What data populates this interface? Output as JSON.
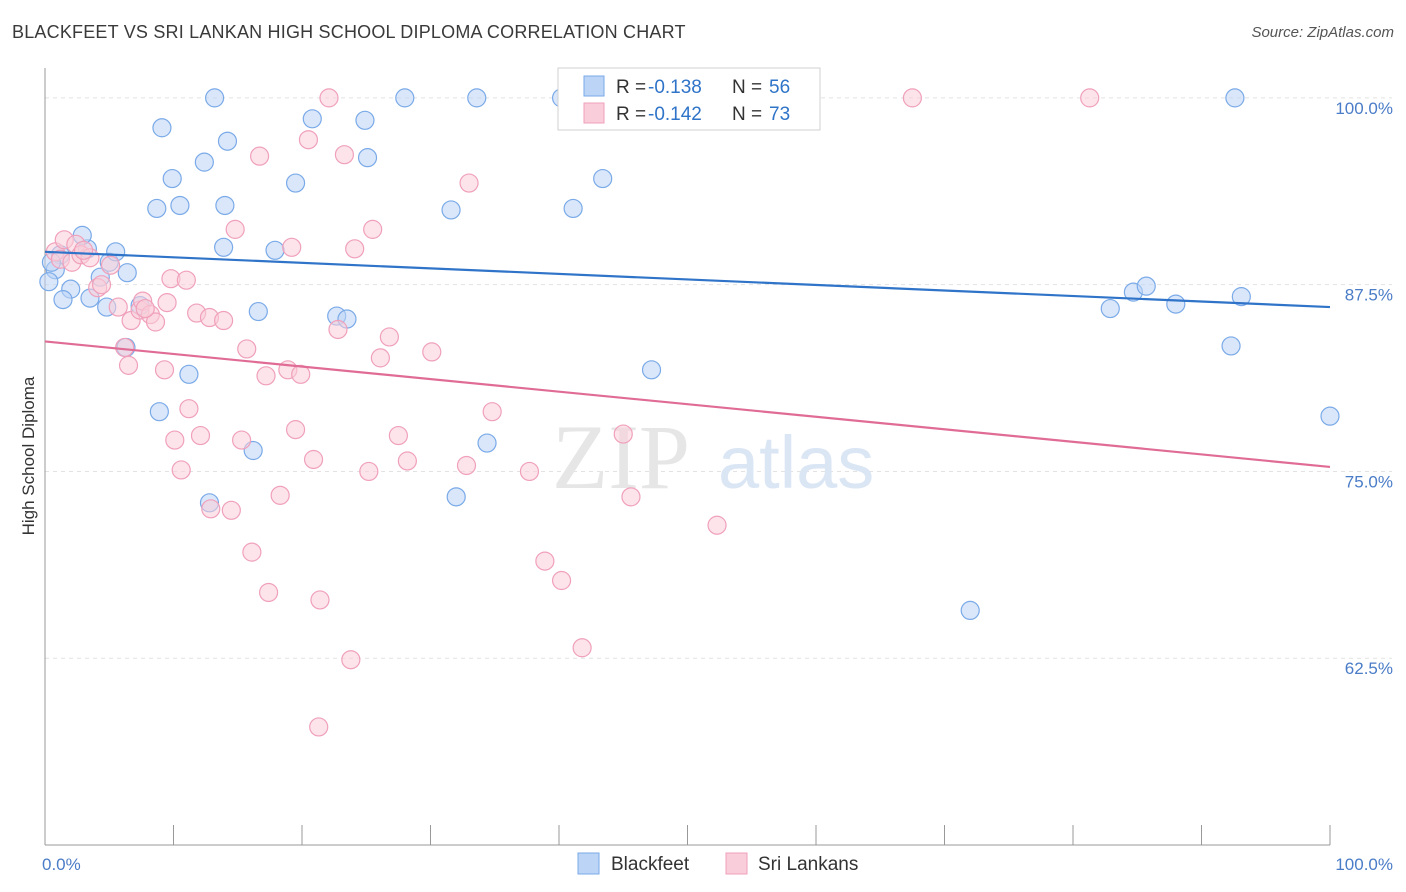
{
  "title": "BLACKFEET VS SRI LANKAN HIGH SCHOOL DIPLOMA CORRELATION CHART",
  "source": "Source: ZipAtlas.com",
  "watermark": {
    "part1": "ZIP",
    "part2": "atlas"
  },
  "chart_data": {
    "type": "scatter",
    "ylabel": "High School Diploma",
    "xlim": [
      0,
      100
    ],
    "ylim": [
      50,
      102
    ],
    "x_tick_labels": [
      "0.0%",
      "100.0%"
    ],
    "y_ticks": [
      {
        "value": 100,
        "label": "100.0%"
      },
      {
        "value": 87.5,
        "label": "87.5%"
      },
      {
        "value": 75,
        "label": "75.0%"
      },
      {
        "value": 62.5,
        "label": "62.5%"
      }
    ],
    "grid": true,
    "legend_position": "top-center",
    "series": [
      {
        "name": "Blackfeet",
        "color": "#7aaae8",
        "fill": "#bcd4f5",
        "line_color": "#2f74c8",
        "r_label": "R = ",
        "r": "-0.138",
        "n_label": "N = ",
        "n": "56",
        "trend": {
          "x0": 0,
          "y0": 89.7,
          "x1": 100,
          "y1": 86.0
        },
        "points": [
          [
            1.2,
            89.5
          ],
          [
            0.8,
            88.5
          ],
          [
            0.5,
            89.0
          ],
          [
            2.0,
            87.2
          ],
          [
            1.4,
            86.5
          ],
          [
            3.3,
            89.9
          ],
          [
            2.9,
            90.8
          ],
          [
            3.5,
            86.6
          ],
          [
            4.3,
            88.0
          ],
          [
            5.0,
            89.0
          ],
          [
            5.5,
            89.7
          ],
          [
            4.8,
            86.0
          ],
          [
            6.4,
            88.3
          ],
          [
            7.4,
            86.1
          ],
          [
            6.3,
            83.3
          ],
          [
            9.1,
            98.0
          ],
          [
            9.9,
            94.6
          ],
          [
            8.7,
            92.6
          ],
          [
            10.5,
            92.8
          ],
          [
            12.4,
            95.7
          ],
          [
            13.2,
            100.0
          ],
          [
            14.2,
            97.1
          ],
          [
            14.0,
            92.8
          ],
          [
            13.9,
            90.0
          ],
          [
            16.6,
            85.7
          ],
          [
            17.9,
            89.8
          ],
          [
            19.5,
            94.3
          ],
          [
            20.8,
            98.6
          ],
          [
            22.7,
            85.4
          ],
          [
            23.5,
            85.2
          ],
          [
            24.9,
            98.5
          ],
          [
            25.1,
            96.0
          ],
          [
            28.0,
            100.0
          ],
          [
            31.6,
            92.5
          ],
          [
            33.6,
            100.0
          ],
          [
            34.4,
            76.9
          ],
          [
            32.0,
            73.3
          ],
          [
            40.2,
            100.0
          ],
          [
            41.1,
            92.6
          ],
          [
            43.4,
            94.6
          ],
          [
            46.9,
            100.0
          ],
          [
            47.2,
            81.8
          ],
          [
            11.2,
            81.5
          ],
          [
            8.9,
            79.0
          ],
          [
            16.2,
            76.4
          ],
          [
            12.8,
            72.9
          ],
          [
            92.6,
            100.0
          ],
          [
            84.7,
            87.0
          ],
          [
            85.7,
            87.4
          ],
          [
            82.9,
            85.9
          ],
          [
            88.0,
            86.2
          ],
          [
            92.3,
            83.4
          ],
          [
            93.1,
            86.7
          ],
          [
            100.0,
            78.7
          ],
          [
            72.0,
            65.7
          ],
          [
            0.3,
            87.7
          ]
        ]
      },
      {
        "name": "Sri Lankans",
        "color": "#f0a0bb",
        "fill": "#f9cdd9",
        "line_color": "#e06c96",
        "r_label": "R = ",
        "r": "-0.142",
        "n_label": "N = ",
        "n": "73",
        "trend": {
          "x0": 0,
          "y0": 83.7,
          "x1": 100,
          "y1": 75.3
        },
        "points": [
          [
            0.8,
            89.7
          ],
          [
            1.2,
            89.2
          ],
          [
            1.5,
            90.5
          ],
          [
            2.1,
            89.0
          ],
          [
            2.4,
            90.2
          ],
          [
            2.8,
            89.5
          ],
          [
            3.5,
            89.3
          ],
          [
            4.1,
            87.3
          ],
          [
            4.4,
            87.5
          ],
          [
            5.1,
            88.8
          ],
          [
            5.7,
            86.0
          ],
          [
            6.2,
            83.3
          ],
          [
            6.5,
            82.1
          ],
          [
            6.7,
            85.1
          ],
          [
            7.4,
            85.8
          ],
          [
            7.6,
            86.4
          ],
          [
            8.2,
            85.5
          ],
          [
            8.6,
            85.0
          ],
          [
            9.3,
            81.8
          ],
          [
            9.8,
            87.9
          ],
          [
            10.1,
            77.1
          ],
          [
            10.6,
            75.1
          ],
          [
            11.0,
            87.8
          ],
          [
            11.2,
            79.2
          ],
          [
            11.8,
            85.6
          ],
          [
            12.1,
            77.4
          ],
          [
            12.8,
            85.3
          ],
          [
            12.9,
            72.5
          ],
          [
            13.9,
            85.1
          ],
          [
            14.5,
            72.4
          ],
          [
            14.8,
            91.2
          ],
          [
            15.3,
            77.1
          ],
          [
            15.7,
            83.2
          ],
          [
            16.1,
            69.6
          ],
          [
            16.7,
            96.1
          ],
          [
            17.2,
            81.4
          ],
          [
            17.4,
            66.9
          ],
          [
            18.3,
            73.4
          ],
          [
            18.9,
            81.8
          ],
          [
            19.2,
            90.0
          ],
          [
            19.5,
            77.8
          ],
          [
            19.9,
            81.5
          ],
          [
            20.5,
            97.2
          ],
          [
            20.9,
            75.8
          ],
          [
            21.4,
            66.4
          ],
          [
            22.1,
            100.0
          ],
          [
            22.8,
            84.5
          ],
          [
            23.3,
            96.2
          ],
          [
            23.8,
            62.4
          ],
          [
            24.1,
            89.9
          ],
          [
            25.2,
            75.0
          ],
          [
            26.1,
            82.6
          ],
          [
            26.8,
            84.0
          ],
          [
            27.5,
            77.4
          ],
          [
            28.2,
            75.7
          ],
          [
            30.1,
            83.0
          ],
          [
            32.8,
            75.4
          ],
          [
            33.0,
            94.3
          ],
          [
            34.8,
            79.0
          ],
          [
            37.7,
            75.0
          ],
          [
            38.9,
            69.0
          ],
          [
            40.2,
            67.7
          ],
          [
            41.8,
            63.2
          ],
          [
            45.0,
            77.5
          ],
          [
            45.6,
            73.3
          ],
          [
            52.3,
            71.4
          ],
          [
            67.5,
            100.0
          ],
          [
            81.3,
            100.0
          ],
          [
            21.3,
            57.9
          ],
          [
            25.5,
            91.2
          ],
          [
            3.0,
            89.8
          ],
          [
            9.5,
            86.3
          ],
          [
            7.8,
            85.9
          ]
        ]
      }
    ]
  }
}
